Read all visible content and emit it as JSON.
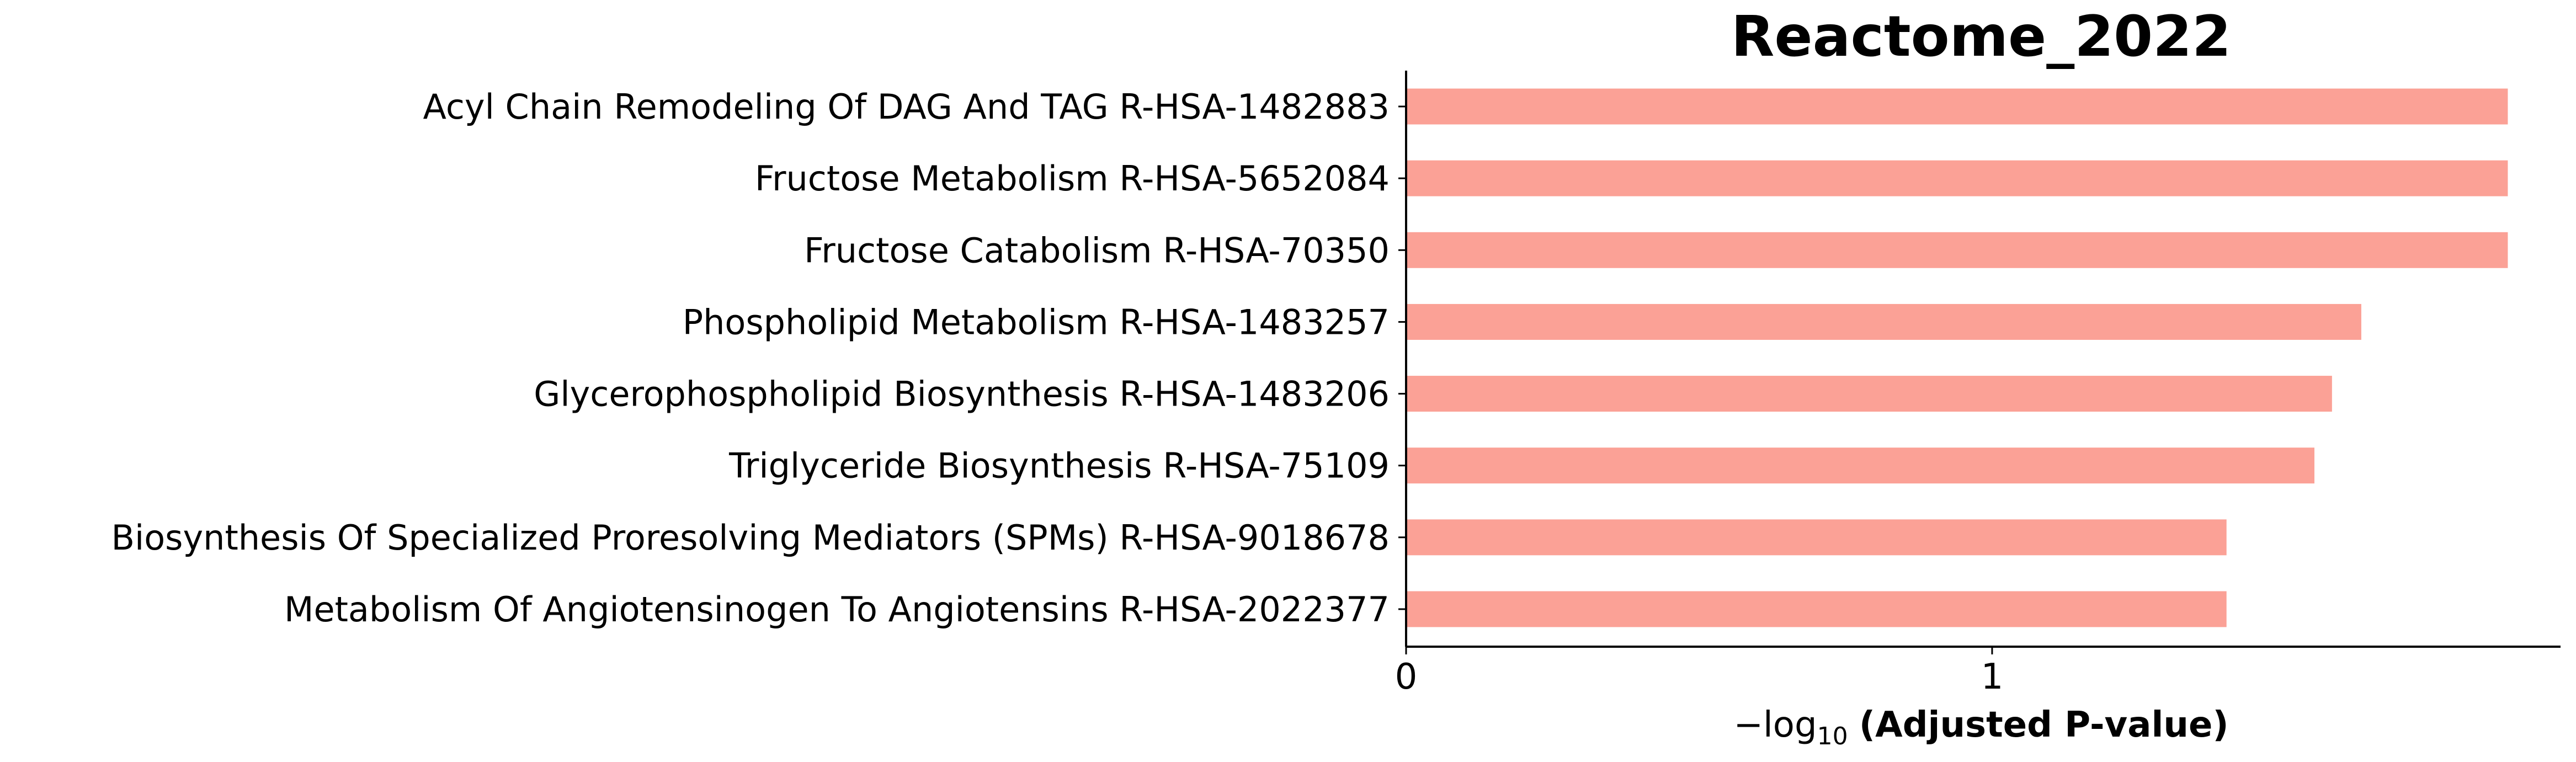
{
  "chart_data": {
    "type": "bar",
    "orientation": "horizontal",
    "title": "Reactome_2022",
    "xlabel": {
      "prefix": "−log",
      "subscript": "10",
      "bold": "(Adjusted P-value)"
    },
    "ylabel": "",
    "categories": [
      "Acyl Chain Remodeling Of DAG And TAG R-HSA-1482883",
      "Fructose Metabolism R-HSA-5652084",
      "Fructose Catabolism R-HSA-70350",
      "Phospholipid Metabolism R-HSA-1483257",
      "Glycerophospholipid Biosynthesis R-HSA-1483206",
      "Triglyceride Biosynthesis R-HSA-75109",
      "Biosynthesis Of Specialized Proresolving Mediators (SPMs) R-HSA-9018678",
      "Metabolism Of Angiotensinogen To Angiotensins R-HSA-2022377"
    ],
    "values": [
      1.88,
      1.88,
      1.88,
      1.63,
      1.58,
      1.55,
      1.4,
      1.4
    ],
    "xlim": [
      0,
      1.97
    ],
    "xticks": [
      0,
      1
    ],
    "xtick_labels": [
      "0",
      "1"
    ],
    "bar_color": "#fba196",
    "grid": false
  }
}
